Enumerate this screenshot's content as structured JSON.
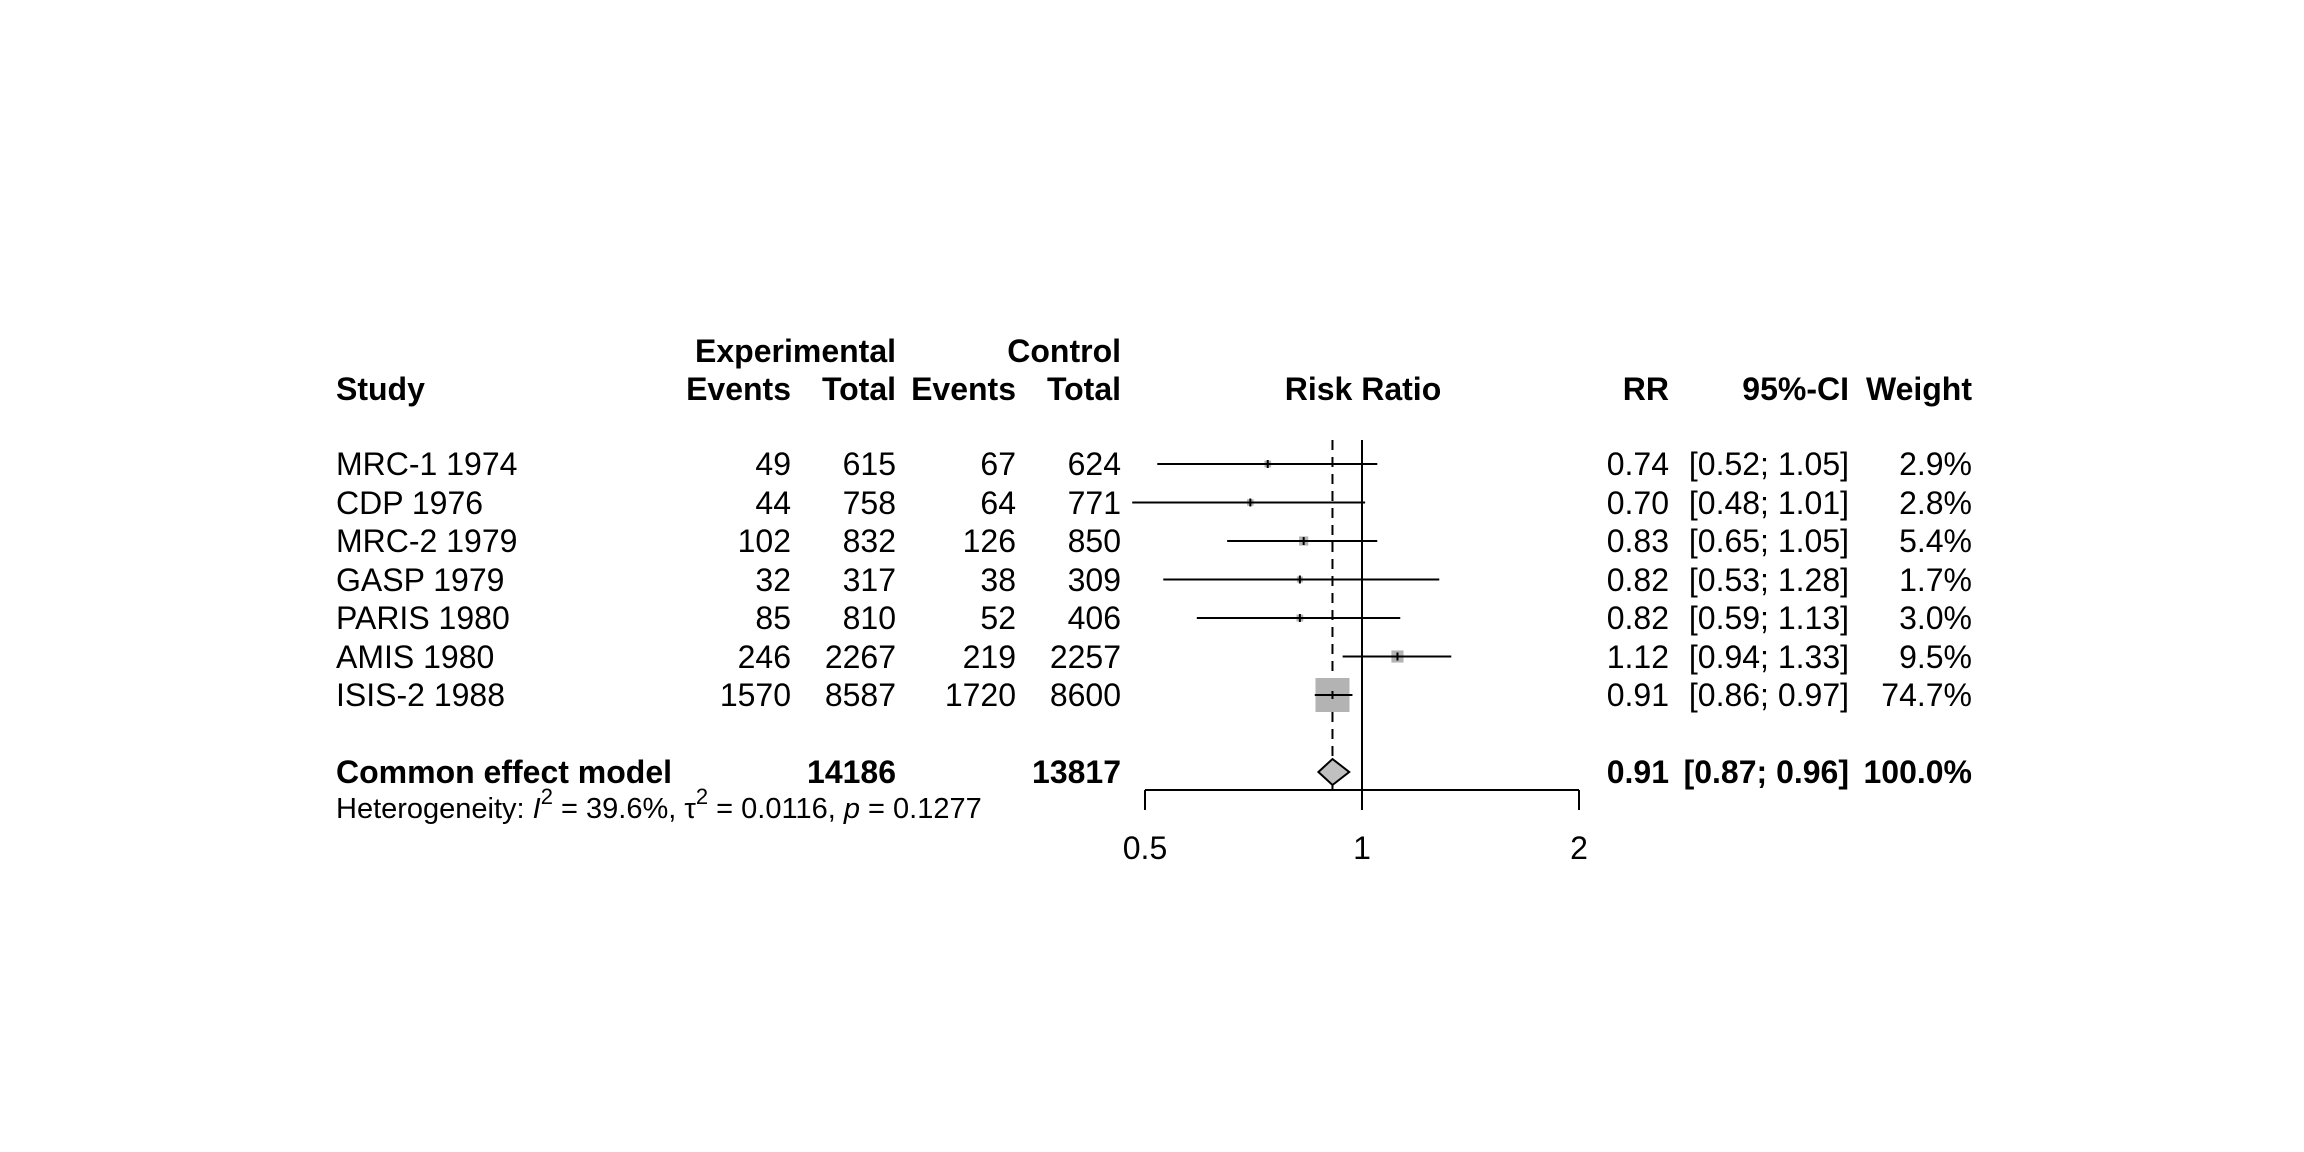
{
  "chart_data": {
    "type": "forest",
    "headers": {
      "study": "Study",
      "experimental_group": "Experimental",
      "control_group": "Control",
      "events": "Events",
      "total": "Total",
      "plot": "Risk Ratio",
      "rr": "RR",
      "ci": "95%-CI",
      "weight": "Weight"
    },
    "studies": [
      {
        "study": "MRC-1 1974",
        "exp_events": "49",
        "exp_total": "615",
        "ctrl_events": "67",
        "ctrl_total": "624",
        "rr": 0.74,
        "lower": 0.52,
        "upper": 1.05,
        "rr_text": "0.74",
        "ci_text": "[0.52; 1.05]",
        "weight": 2.9,
        "weight_text": "2.9%"
      },
      {
        "study": "CDP 1976",
        "exp_events": "44",
        "exp_total": "758",
        "ctrl_events": "64",
        "ctrl_total": "771",
        "rr": 0.7,
        "lower": 0.48,
        "upper": 1.01,
        "rr_text": "0.70",
        "ci_text": "[0.48; 1.01]",
        "weight": 2.8,
        "weight_text": "2.8%"
      },
      {
        "study": "MRC-2 1979",
        "exp_events": "102",
        "exp_total": "832",
        "ctrl_events": "126",
        "ctrl_total": "850",
        "rr": 0.83,
        "lower": 0.65,
        "upper": 1.05,
        "rr_text": "0.83",
        "ci_text": "[0.65; 1.05]",
        "weight": 5.4,
        "weight_text": "5.4%"
      },
      {
        "study": "GASP 1979",
        "exp_events": "32",
        "exp_total": "317",
        "ctrl_events": "38",
        "ctrl_total": "309",
        "rr": 0.82,
        "lower": 0.53,
        "upper": 1.28,
        "rr_text": "0.82",
        "ci_text": "[0.53; 1.28]",
        "weight": 1.7,
        "weight_text": "1.7%"
      },
      {
        "study": "PARIS 1980",
        "exp_events": "85",
        "exp_total": "810",
        "ctrl_events": "52",
        "ctrl_total": "406",
        "rr": 0.82,
        "lower": 0.59,
        "upper": 1.13,
        "rr_text": "0.82",
        "ci_text": "[0.59; 1.13]",
        "weight": 3.0,
        "weight_text": "3.0%"
      },
      {
        "study": "AMIS 1980",
        "exp_events": "246",
        "exp_total": "2267",
        "ctrl_events": "219",
        "ctrl_total": "2257",
        "rr": 1.12,
        "lower": 0.94,
        "upper": 1.33,
        "rr_text": "1.12",
        "ci_text": "[0.94; 1.33]",
        "weight": 9.5,
        "weight_text": "9.5%"
      },
      {
        "study": "ISIS-2 1988",
        "exp_events": "1570",
        "exp_total": "8587",
        "ctrl_events": "1720",
        "ctrl_total": "8600",
        "rr": 0.91,
        "lower": 0.86,
        "upper": 0.97,
        "rr_text": "0.91",
        "ci_text": "[0.86; 0.97]",
        "weight": 74.7,
        "weight_text": "74.7%"
      }
    ],
    "pooled": {
      "label": "Common effect model",
      "exp_total": "14186",
      "ctrl_total": "13817",
      "rr": 0.91,
      "lower": 0.87,
      "upper": 0.96,
      "rr_text": "0.91",
      "ci_text": "[0.87; 0.96]",
      "weight_text": "100.0%"
    },
    "heterogeneity": {
      "prefix": "Heterogeneity: ",
      "i2_symbol": "I",
      "i2_value": " = 39.6%, ",
      "tau_symbol": "τ",
      "tau_value": " = 0.0116, ",
      "p_symbol": "p",
      "p_value": " = 0.1277"
    },
    "x_axis": {
      "scale": "log",
      "min": 0.5,
      "max": 2,
      "ticks": [
        "0.5",
        "1",
        "2"
      ],
      "null_line": 1
    },
    "colors": {
      "square": "#b3b3b3",
      "diamond": "#c0c0c0",
      "line": "#000000"
    }
  }
}
